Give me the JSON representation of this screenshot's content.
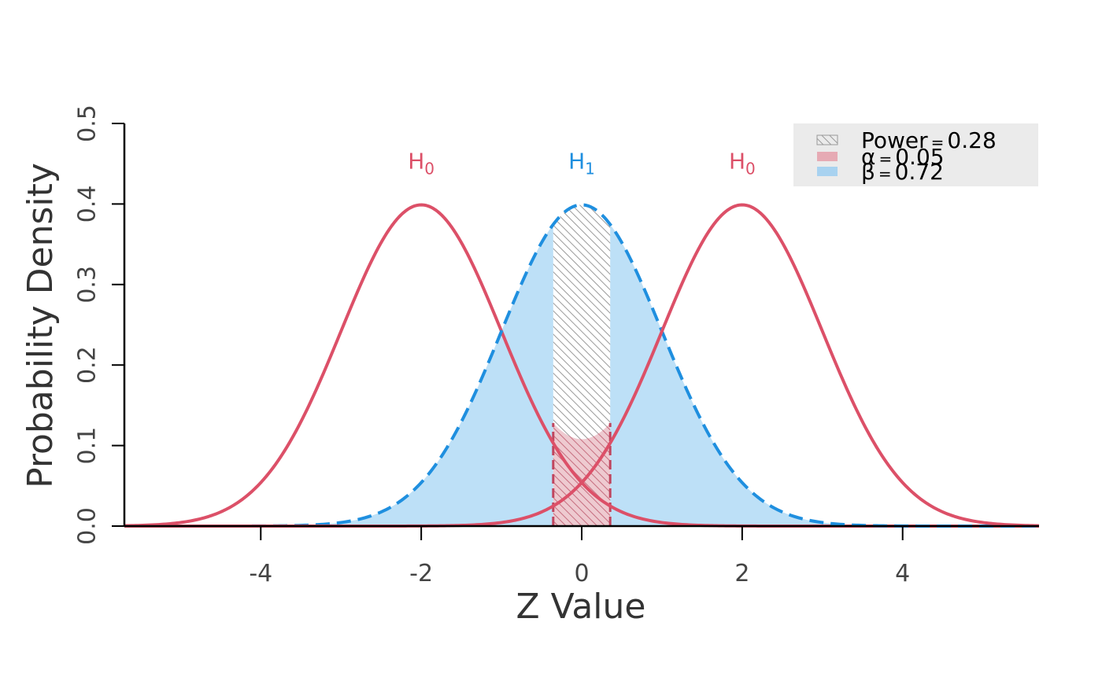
{
  "chart_data": {
    "type": "line",
    "title": "",
    "xlabel": "Z Value",
    "ylabel": "Probability Density",
    "xlim": [
      -5.7,
      5.7
    ],
    "ylim": [
      0,
      0.5
    ],
    "x_ticks": [
      {
        "value": -4,
        "label": "-4"
      },
      {
        "value": -2,
        "label": "-2"
      },
      {
        "value": 0,
        "label": "0"
      },
      {
        "value": 2,
        "label": "2"
      },
      {
        "value": 4,
        "label": "4"
      }
    ],
    "y_ticks": [
      {
        "value": 0,
        "label": "0.0"
      },
      {
        "value": 0.1,
        "label": "0.1"
      },
      {
        "value": 0.2,
        "label": "0.2"
      },
      {
        "value": 0.3,
        "label": "0.3"
      },
      {
        "value": 0.4,
        "label": "0.4"
      },
      {
        "value": 0.5,
        "label": "0.5"
      }
    ],
    "grid": false,
    "legend_position": "top-right",
    "critical_region": [
      -0.355,
      0.355
    ],
    "series": [
      {
        "label": "H",
        "subscript": "0",
        "distribution": "normal",
        "mean": -2,
        "sd": 1,
        "color": "#dc5068",
        "dash": false
      },
      {
        "label": "H",
        "subscript": "1",
        "distribution": "normal",
        "mean": 0,
        "sd": 1,
        "color": "#1f8fdf",
        "dash": true
      },
      {
        "label": "H",
        "subscript": "0",
        "distribution": "normal",
        "mean": 2,
        "sd": 1,
        "color": "#dc5068",
        "dash": false
      }
    ],
    "legend": [
      {
        "symbol": "=",
        "name": "Power",
        "value": "0.28",
        "swatch": "hatch"
      },
      {
        "symbol": "=",
        "name": "α",
        "value": "0.05",
        "swatch": "#e6aab4"
      },
      {
        "symbol": "=",
        "name": "β",
        "value": "0.72",
        "swatch": "#a8d2f0"
      }
    ],
    "colors": {
      "beta_fill": "#bde0f7",
      "alpha_fill": "#e8b8c0",
      "hatch": "#9a9a9a",
      "legend_bg": "#ebebeb"
    }
  }
}
